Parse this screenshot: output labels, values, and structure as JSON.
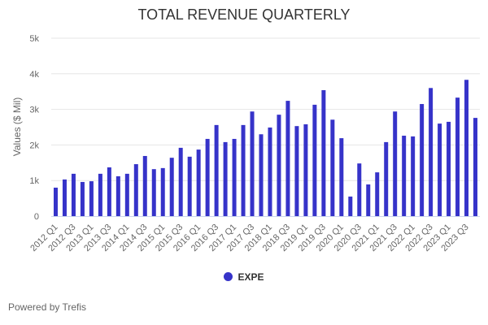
{
  "chart_data": {
    "type": "bar",
    "title": "TOTAL REVENUE QUARTERLY",
    "ylabel": "Values ($ Mil)",
    "xlabel": "",
    "ylim": [
      0,
      5000
    ],
    "yticks": [
      0,
      1000,
      2000,
      3000,
      4000,
      5000
    ],
    "ytick_labels": [
      "0",
      "1k",
      "2k",
      "3k",
      "4k",
      "5k"
    ],
    "grid": true,
    "legend_position": "bottom",
    "color": "#3633c9",
    "categories": [
      "2012 Q1",
      "2012 Q2",
      "2012 Q3",
      "2012 Q4",
      "2013 Q1",
      "2013 Q2",
      "2013 Q3",
      "2013 Q4",
      "2014 Q1",
      "2014 Q2",
      "2014 Q3",
      "2014 Q4",
      "2015 Q1",
      "2015 Q2",
      "2015 Q3",
      "2015 Q4",
      "2016 Q1",
      "2016 Q2",
      "2016 Q3",
      "2016 Q4",
      "2017 Q1",
      "2017 Q2",
      "2017 Q3",
      "2017 Q4",
      "2018 Q1",
      "2018 Q2",
      "2018 Q3",
      "2018 Q4",
      "2019 Q1",
      "2019 Q2",
      "2019 Q3",
      "2019 Q4",
      "2020 Q1",
      "2020 Q2",
      "2020 Q3",
      "2020 Q4",
      "2021 Q1",
      "2021 Q2",
      "2021 Q3",
      "2021 Q4",
      "2022 Q1",
      "2022 Q2",
      "2022 Q3",
      "2022 Q4",
      "2023 Q1",
      "2023 Q2",
      "2023 Q3",
      "2023 Q4"
    ],
    "series": [
      {
        "name": "EXPE",
        "values": [
          800,
          1030,
          1190,
          960,
          980,
          1190,
          1370,
          1120,
          1190,
          1460,
          1690,
          1320,
          1350,
          1640,
          1920,
          1670,
          1870,
          2170,
          2560,
          2080,
          2170,
          2560,
          2940,
          2300,
          2490,
          2850,
          3240,
          2530,
          2580,
          3130,
          3540,
          2710,
          2190,
          550,
          1480,
          890,
          1230,
          2080,
          2940,
          2260,
          2240,
          3150,
          3600,
          2600,
          2650,
          3330,
          3830,
          2760
        ]
      }
    ]
  },
  "footer": {
    "credit": "Powered by Trefis"
  }
}
